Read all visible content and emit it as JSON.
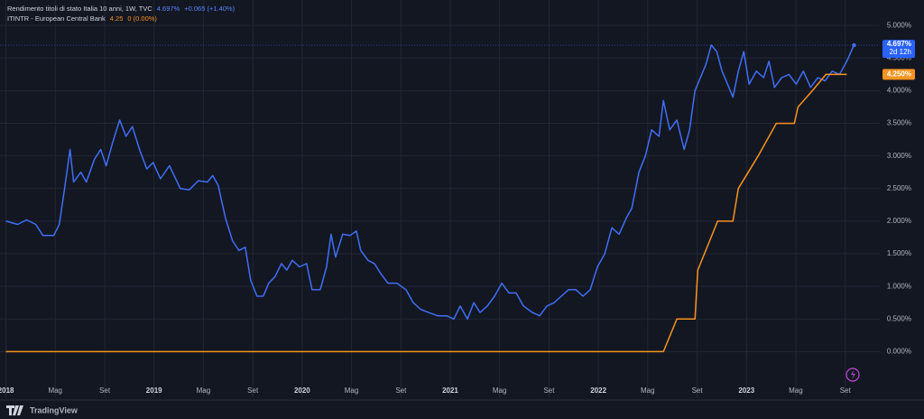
{
  "chart_data": {
    "type": "line",
    "grid": true,
    "xlim": [
      2017.96,
      2023.9
    ],
    "ylim": [
      -0.7,
      5.39
    ],
    "xticks": [
      2018,
      {
        "value": 2018.333,
        "label": "Mag"
      },
      {
        "value": 2018.667,
        "label": "Set"
      },
      2019,
      {
        "value": 2019.333,
        "label": "Mag"
      },
      {
        "value": 2019.667,
        "label": "Set"
      },
      2020,
      {
        "value": 2020.333,
        "label": "Mag"
      },
      {
        "value": 2020.667,
        "label": "Set"
      },
      2021,
      {
        "value": 2021.333,
        "label": "Mag"
      },
      {
        "value": 2021.667,
        "label": "Set"
      },
      2022,
      {
        "value": 2022.333,
        "label": "Mag"
      },
      {
        "value": 2022.667,
        "label": "Set"
      },
      2023,
      {
        "value": 2023.333,
        "label": "Mag"
      },
      {
        "value": 2023.667,
        "label": "Set"
      }
    ],
    "yticks": [
      {
        "value": 0,
        "label": "0.000%"
      },
      {
        "value": 0.5,
        "label": "0.500%"
      },
      {
        "value": 1,
        "label": "1.000%"
      },
      {
        "value": 1.5,
        "label": "1.500%"
      },
      {
        "value": 2,
        "label": "2.000%"
      },
      {
        "value": 2.5,
        "label": "2.500%"
      },
      {
        "value": 3,
        "label": "3.000%"
      },
      {
        "value": 3.5,
        "label": "3.500%"
      },
      {
        "value": 4,
        "label": "4.000%"
      },
      {
        "value": 4.5,
        "label": "4.500%"
      },
      {
        "value": 5,
        "label": "5.000%"
      }
    ],
    "countdown": "2d 12h",
    "brand": "TradingView",
    "series": [
      {
        "name": "Rendimento titoli di stato Italia 10 anni, 1W, TVC",
        "color": "#3f6ff5",
        "last_label": "4.697%",
        "change": "+0.065 (+1.40%)",
        "x": [
          2018.0,
          2018.079,
          2018.14,
          2018.201,
          2018.25,
          2018.323,
          2018.36,
          2018.396,
          2018.433,
          2018.457,
          2018.506,
          2018.543,
          2018.598,
          2018.64,
          2018.677,
          2018.72,
          2018.768,
          2018.811,
          2018.854,
          2018.902,
          2018.951,
          2018.994,
          2019.043,
          2019.104,
          2019.177,
          2019.238,
          2019.299,
          2019.36,
          2019.396,
          2019.433,
          2019.482,
          2019.53,
          2019.573,
          2019.616,
          2019.652,
          2019.695,
          2019.738,
          2019.774,
          2019.817,
          2019.86,
          2019.896,
          2019.933,
          2019.982,
          2020.03,
          2020.067,
          2020.122,
          2020.165,
          2020.195,
          2020.226,
          2020.274,
          2020.323,
          2020.366,
          2020.396,
          2020.445,
          2020.488,
          2020.53,
          2020.579,
          2020.64,
          2020.701,
          2020.75,
          2020.799,
          2020.854,
          2020.915,
          2020.976,
          2021.024,
          2021.067,
          2021.116,
          2021.159,
          2021.201,
          2021.25,
          2021.299,
          2021.348,
          2021.396,
          2021.445,
          2021.494,
          2021.555,
          2021.604,
          2021.652,
          2021.701,
          2021.75,
          2021.799,
          2021.848,
          2021.896,
          2021.945,
          2021.994,
          2022.043,
          2022.091,
          2022.14,
          2022.189,
          2022.226,
          2022.274,
          2022.317,
          2022.36,
          2022.409,
          2022.439,
          2022.482,
          2022.53,
          2022.579,
          2022.616,
          2022.652,
          2022.689,
          2022.726,
          2022.762,
          2022.799,
          2022.835,
          2022.872,
          2022.909,
          2022.945,
          2022.982,
          2023.018,
          2023.067,
          2023.116,
          2023.152,
          2023.189,
          2023.238,
          2023.287,
          2023.335,
          2023.384,
          2023.433,
          2023.482,
          2023.53,
          2023.579,
          2023.628,
          2023.677,
          2023.726
        ],
        "values": [
          2.0,
          1.95,
          2.02,
          1.95,
          1.78,
          1.78,
          1.95,
          2.5,
          3.1,
          2.6,
          2.75,
          2.6,
          2.95,
          3.1,
          2.85,
          3.2,
          3.55,
          3.3,
          3.45,
          3.1,
          2.8,
          2.9,
          2.65,
          2.85,
          2.5,
          2.48,
          2.62,
          2.6,
          2.7,
          2.55,
          2.05,
          1.7,
          1.55,
          1.6,
          1.1,
          0.85,
          0.85,
          1.05,
          1.15,
          1.35,
          1.25,
          1.4,
          1.3,
          1.35,
          0.95,
          0.95,
          1.3,
          1.8,
          1.45,
          1.8,
          1.78,
          1.85,
          1.55,
          1.4,
          1.35,
          1.2,
          1.05,
          1.05,
          0.95,
          0.75,
          0.65,
          0.6,
          0.55,
          0.55,
          0.5,
          0.7,
          0.5,
          0.75,
          0.6,
          0.7,
          0.85,
          1.05,
          0.9,
          0.9,
          0.7,
          0.6,
          0.55,
          0.7,
          0.75,
          0.85,
          0.95,
          0.95,
          0.85,
          0.95,
          1.3,
          1.5,
          1.9,
          1.8,
          2.05,
          2.2,
          2.75,
          3.0,
          3.4,
          3.3,
          3.85,
          3.4,
          3.55,
          3.1,
          3.4,
          4.0,
          4.2,
          4.4,
          4.7,
          4.6,
          4.3,
          4.1,
          3.9,
          4.3,
          4.6,
          4.1,
          4.3,
          4.2,
          4.45,
          4.05,
          4.2,
          4.25,
          4.1,
          4.3,
          4.05,
          4.2,
          4.15,
          4.3,
          4.25,
          4.45,
          4.697
        ]
      },
      {
        "name": "ITINTR - European Central Bank",
        "color": "#f7931e",
        "last_label": "4.25",
        "change": "0 (0.00%)",
        "axis_label": "4.250%",
        "x": [
          2018.0,
          2022.439,
          2022.53,
          2022.652,
          2022.671,
          2022.805,
          2022.909,
          2022.945,
          2023.079,
          2023.201,
          2023.323,
          2023.348,
          2023.445,
          2023.537,
          2023.677
        ],
        "values": [
          0,
          0,
          0.5,
          0.5,
          1.25,
          2.0,
          2.0,
          2.5,
          3.0,
          3.5,
          3.5,
          3.75,
          4.0,
          4.25,
          4.25
        ]
      }
    ]
  }
}
